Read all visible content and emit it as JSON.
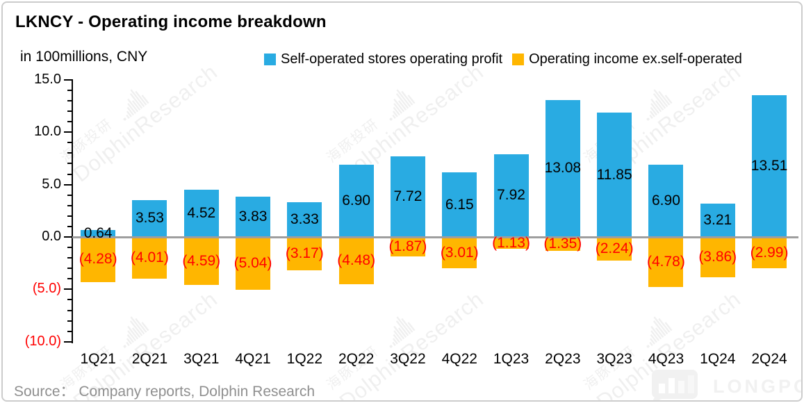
{
  "header": {
    "title": "LKNCY - Operating income breakdown",
    "subtitle": "in 100millions, CNY"
  },
  "legend": {
    "items": [
      {
        "label": "Self-operated stores operating profit",
        "color": "#29ABE2"
      },
      {
        "label": "Operating income ex.self-operated",
        "color": "#FFB600"
      }
    ]
  },
  "source": {
    "text": "Source：  Company reports, Dolphin Research"
  },
  "watermark": {
    "cn": "海豚投研",
    "en": "DolphinResearch"
  },
  "logo": {
    "text": "LONGPORT"
  },
  "chart_data": {
    "type": "bar",
    "subtype": "stacked positive/negative columns",
    "title": "LKNCY - Operating income breakdown",
    "units": "in 100millions, CNY",
    "categories": [
      "1Q21",
      "2Q21",
      "3Q21",
      "4Q21",
      "1Q22",
      "2Q22",
      "3Q22",
      "4Q22",
      "1Q23",
      "2Q23",
      "3Q23",
      "4Q23",
      "1Q24",
      "2Q24"
    ],
    "series": [
      {
        "name": "Self-operated stores operating profit",
        "color": "#29ABE2",
        "label_color": "#000000",
        "values": [
          0.64,
          3.53,
          4.52,
          3.83,
          3.33,
          6.9,
          7.72,
          6.15,
          7.92,
          13.08,
          11.85,
          6.9,
          3.21,
          13.51
        ],
        "labels": [
          "0.64",
          "3.53",
          "4.52",
          "3.83",
          "3.33",
          "6.90",
          "7.72",
          "6.15",
          "7.92",
          "13.08",
          "11.85",
          "6.90",
          "3.21",
          "13.51"
        ]
      },
      {
        "name": "Operating income ex.self-operated",
        "color": "#FFB600",
        "label_color": "#FF0000",
        "values": [
          -4.28,
          -4.01,
          -4.59,
          -5.04,
          -3.17,
          -4.48,
          -1.87,
          -3.01,
          -1.13,
          -1.35,
          -2.24,
          -4.78,
          -3.86,
          -2.99
        ],
        "labels": [
          "(4.28)",
          "(4.01)",
          "(4.59)",
          "(5.04)",
          "(3.17)",
          "(4.48)",
          "(1.87)",
          "(3.01)",
          "(1.13)",
          "(1.35)",
          "(2.24)",
          "(4.78)",
          "(3.86)",
          "(2.99)"
        ]
      }
    ],
    "y_axis": {
      "min": -10,
      "max": 15,
      "major_step": 5,
      "minor_step": 1,
      "tick_labels": [
        {
          "text": "15.0",
          "value": 15,
          "negative": false
        },
        {
          "text": "10.0",
          "value": 10,
          "negative": false
        },
        {
          "text": "5.0",
          "value": 5,
          "negative": false
        },
        {
          "text": "0.0",
          "value": 0,
          "negative": false
        },
        {
          "text": "(5.0)",
          "value": -5,
          "negative": true
        },
        {
          "text": "(10.0)",
          "value": -10,
          "negative": true
        }
      ]
    },
    "legend_position": "top",
    "gridlines": "none; gray zero line only",
    "negative_label_style": "red text in parentheses"
  }
}
